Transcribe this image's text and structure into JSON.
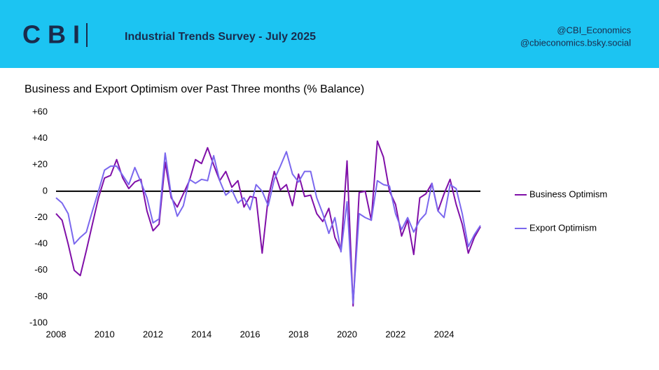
{
  "header": {
    "logo": "CBI",
    "title": "Industrial Trends Survey - July 2025",
    "handles": [
      "@CBI_Economics",
      "@cbieconomics.bsky.social"
    ]
  },
  "chart_data": {
    "type": "line",
    "title": "Business and Export Optimism over Past Three months (% Balance)",
    "x": [
      2008,
      2008.25,
      2008.5,
      2008.75,
      2009,
      2009.25,
      2009.5,
      2009.75,
      2010,
      2010.25,
      2010.5,
      2010.75,
      2011,
      2011.25,
      2011.5,
      2011.75,
      2012,
      2012.25,
      2012.5,
      2012.75,
      2013,
      2013.25,
      2013.5,
      2013.75,
      2014,
      2014.25,
      2014.5,
      2014.75,
      2015,
      2015.25,
      2015.5,
      2015.75,
      2016,
      2016.25,
      2016.5,
      2016.75,
      2017,
      2017.25,
      2017.5,
      2017.75,
      2018,
      2018.25,
      2018.5,
      2018.75,
      2019,
      2019.25,
      2019.5,
      2019.75,
      2020,
      2020.25,
      2020.5,
      2020.75,
      2021,
      2021.25,
      2021.5,
      2021.75,
      2022,
      2022.25,
      2022.5,
      2022.75,
      2023,
      2023.25,
      2023.5,
      2023.75,
      2024,
      2024.25,
      2024.5,
      2024.75,
      2025,
      2025.25,
      2025.5
    ],
    "series": [
      {
        "name": "Business Optimism",
        "color": "#8010a8",
        "values": [
          -17,
          -22,
          -40,
          -60,
          -64,
          -45,
          -25,
          -5,
          10,
          12,
          24,
          10,
          2,
          7,
          9,
          -15,
          -30,
          -25,
          22,
          -5,
          -12,
          -2,
          8,
          24,
          21,
          33,
          20,
          8,
          15,
          3,
          8,
          -12,
          -4,
          -5,
          -47,
          -5,
          15,
          1,
          5,
          -11,
          13,
          -4,
          -3,
          -17,
          -23,
          -13,
          -35,
          -45,
          23,
          -87,
          -1,
          0,
          -22,
          38,
          26,
          0,
          -10,
          -34,
          -22,
          -48,
          -5,
          -2,
          6,
          -15,
          -2,
          9,
          -10,
          -25,
          -47,
          -35,
          -27
        ]
      },
      {
        "name": "Export Optimism",
        "color": "#7b68ee",
        "values": [
          -5,
          -9,
          -17,
          -40,
          -35,
          -31,
          -15,
          0,
          16,
          19,
          19,
          12,
          5,
          18,
          7,
          -5,
          -24,
          -21,
          29,
          -3,
          -19,
          -11,
          9,
          6,
          9,
          8,
          27,
          8,
          -3,
          1,
          -9,
          -5,
          -14,
          5,
          0,
          -11,
          9,
          19,
          30,
          13,
          7,
          15,
          15,
          -5,
          -17,
          -32,
          -20,
          -46,
          -8,
          -85,
          -17,
          -20,
          -22,
          8,
          5,
          4,
          -17,
          -29,
          -20,
          -31,
          -22,
          -17,
          6,
          -15,
          -20,
          5,
          2,
          -17,
          -42,
          -33,
          -26
        ]
      }
    ],
    "xlim": [
      2008,
      2025.5
    ],
    "xticks": [
      2008,
      2010,
      2012,
      2014,
      2016,
      2018,
      2020,
      2022,
      2024
    ],
    "ylim": [
      -100,
      60
    ],
    "yticks": [
      {
        "value": 60,
        "label": "+60"
      },
      {
        "value": 40,
        "label": "+40"
      },
      {
        "value": 20,
        "label": "+20"
      },
      0,
      -20,
      -40,
      -60,
      -80,
      -100
    ],
    "legend": "right"
  }
}
